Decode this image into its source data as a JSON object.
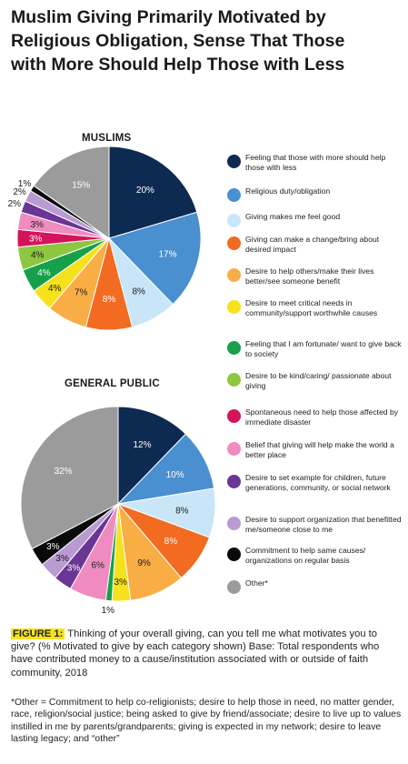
{
  "title_lines": [
    "Muslim Giving Primarily Motivated by",
    "Religious Obligation, Sense That Those",
    "with More Should Help Those with Less"
  ],
  "chart_data": [
    {
      "type": "pie",
      "title": "MUSLIMS",
      "categories": [
        "Feeling that those with more should help those with less",
        "Religious duty/obligation",
        "Giving makes me feel good",
        "Giving can make a change/bring about desired impact",
        "Desire to help others/make their lives better/see someone benefit",
        "Desire to meet critical needs in community/support worthwhile causes",
        "Feeling that I am fortunate/ want to give back to society",
        "Desire to be kind/caring/ passionate about giving",
        "Spontaneous need to help those affected by immediate disaster",
        "Belief that giving will help make the world a better place",
        "Desire to set example for children, future generations, community, or social network",
        "Desire to support organization that benefitted me/someone close to me",
        "Commitment to help same causes/ organizations on regular basis",
        "Other*"
      ],
      "values": [
        20,
        17,
        8,
        8,
        7,
        4,
        4,
        4,
        3,
        3,
        2,
        2,
        1,
        15
      ],
      "labels": [
        "20%",
        "17%",
        "8%",
        "8%",
        "7%",
        "4%",
        "4%",
        "4%",
        "3%",
        "3%",
        "2%",
        "2%",
        "1%",
        "15%"
      ]
    },
    {
      "type": "pie",
      "title": "GENERAL PUBLIC",
      "categories": [
        "Feeling that those with more should help those with less",
        "Religious duty/obligation",
        "Giving makes me feel good",
        "Giving can make a change/bring about desired impact",
        "Desire to help others/make their lives better/see someone benefit",
        "Desire to meet critical needs in community/support worthwhile causes",
        "Feeling that I am fortunate/ want to give back to society",
        "Desire to be kind/caring/ passionate about giving",
        "Spontaneous need to help those affected by immediate disaster",
        "Belief that giving will help make the world a better place",
        "Desire to set example for children, future generations, community, or social network",
        "Desire to support organization that benefitted me/someone close to me",
        "Commitment to help same causes/ organizations on regular basis",
        "Other*"
      ],
      "values": [
        12,
        10,
        8,
        8,
        9,
        3,
        1,
        0,
        0,
        6,
        3,
        3,
        3,
        32
      ],
      "labels": [
        "12%",
        "10%",
        "8%",
        "8%",
        "9%",
        "3%",
        "1%",
        "",
        "",
        "6%",
        "3%",
        "3%",
        "3%",
        "32%"
      ]
    }
  ],
  "legend": [
    {
      "label": "Feeling that those with more should help those with less",
      "color": "#0d2a52"
    },
    {
      "label": "Religious duty/obligation",
      "color": "#4a8fd0"
    },
    {
      "label": "Giving makes me feel good",
      "color": "#c9e6f8"
    },
    {
      "label": "Giving can make a change/bring about desired impact",
      "color": "#f26b21"
    },
    {
      "label": "Desire to help others/make their lives better/see someone benefit",
      "color": "#f9ad45"
    },
    {
      "label": "Desire to meet critical needs in community/support worthwhile causes",
      "color": "#f6e11d"
    },
    {
      "label": "Feeling that I am fortunate/ want to give back to society",
      "color": "#16a04a"
    },
    {
      "label": "Desire to be kind/caring/ passionate about giving",
      "color": "#8dc63f"
    },
    {
      "label": "Spontaneous need to help those affected by immediate disaster",
      "color": "#d4145a"
    },
    {
      "label": "Belief that giving will help make the world a better place",
      "color": "#ef8bbf"
    },
    {
      "label": "Desire to set example for children, future generations, community, or social network",
      "color": "#6a3594"
    },
    {
      "label": "Desire to support organization that benefitted me/someone close to me",
      "color": "#b99ad3"
    },
    {
      "label": "Commitment to help same causes/ organizations on regular basis",
      "color": "#0a0a0a"
    },
    {
      "label": "Other*",
      "color": "#9b9b9b"
    }
  ],
  "label_colors": {
    "dark_text": "#1a1a1a",
    "light_text": "#ffffff"
  },
  "caption": {
    "figure_label": "FIGURE 1:",
    "text": " Thinking of your overall giving, can you tell me what motivates you to give? (% Motivated to give by each category shown) Base: Total respondents who have contributed money to a cause/institution associated with or outside of faith community, 2018"
  },
  "footnote": "*Other = Commitment to help co-religionists; desire to help those in need, no matter gender, race, religion/social justice; being asked to give by friend/associate; desire to live up to values instilled in me by parents/grandparents; giving is expected in my network; desire to leave lasting legacy; and “other”"
}
